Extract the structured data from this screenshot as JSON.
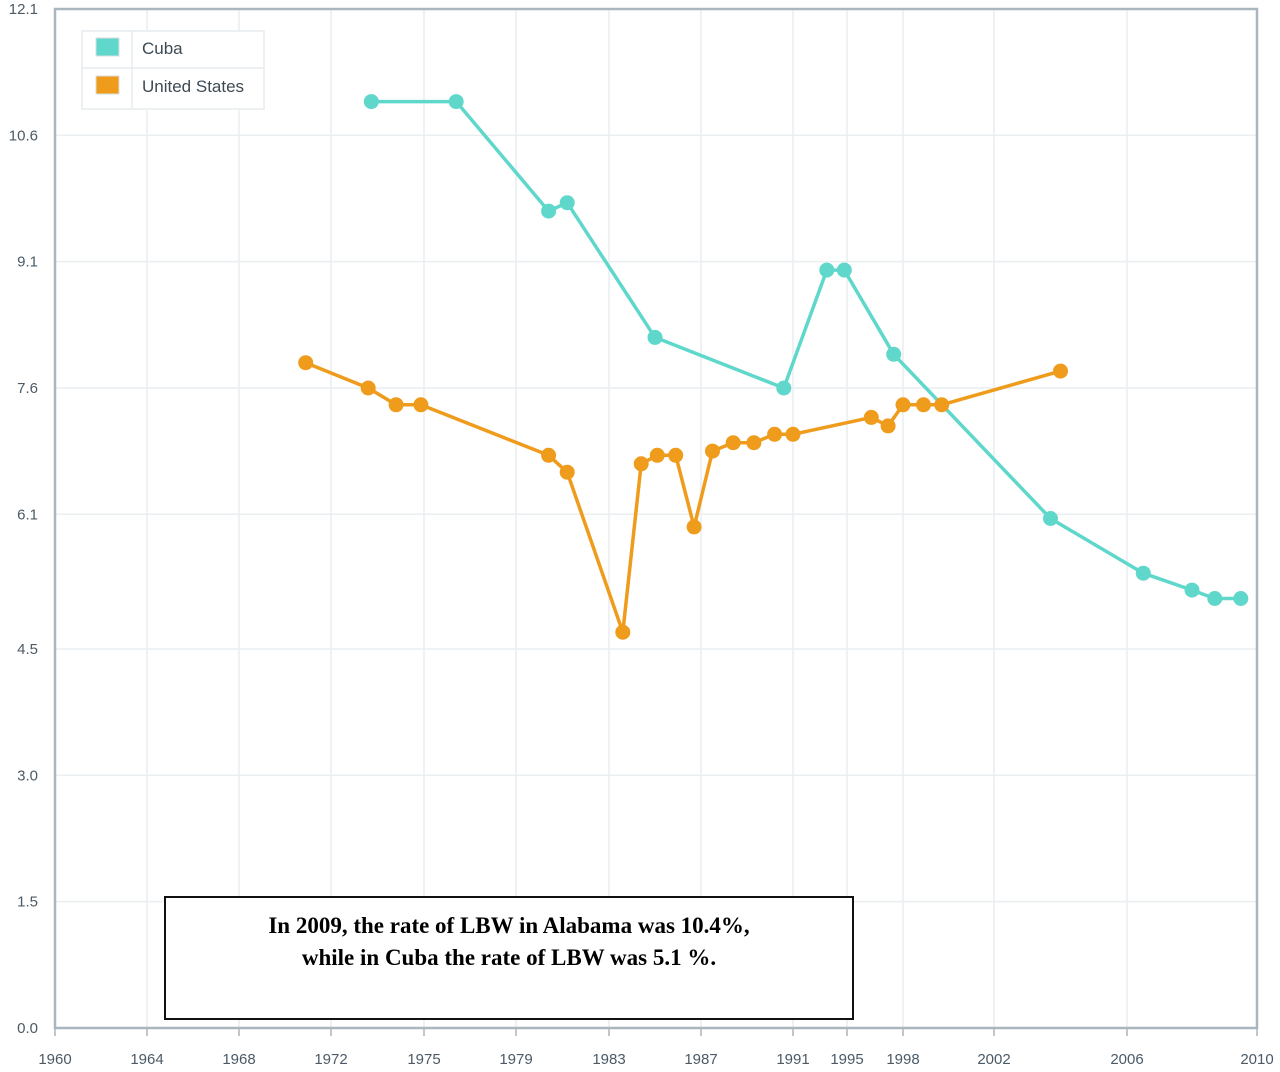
{
  "chart_data": {
    "type": "line",
    "title": "",
    "xlabel": "",
    "ylabel": "",
    "x_tick_labels": [
      "1960",
      "1964",
      "1968",
      "1972",
      "1975",
      "1979",
      "1983",
      "1987",
      "1991",
      "1995",
      "1998",
      "2002",
      "2006",
      "2010"
    ],
    "y_tick_labels": [
      "0.0",
      "1.5",
      "3.0",
      "4.5",
      "6.1",
      "7.6",
      "9.1",
      "10.6",
      "12.1"
    ],
    "ylim": [
      0,
      12.1
    ],
    "grid": true,
    "legend_position": "top-left",
    "series": [
      {
        "name": "Cuba",
        "color": "#5fd8cb",
        "points": [
          {
            "x": 1973.3,
            "y": 11.0
          },
          {
            "x": 1976.4,
            "y": 11.0
          },
          {
            "x": 1980.4,
            "y": 9.7
          },
          {
            "x": 1981.2,
            "y": 9.8
          },
          {
            "x": 1985.0,
            "y": 8.2
          },
          {
            "x": 1990.6,
            "y": 7.6
          },
          {
            "x": 1993.5,
            "y": 9.0
          },
          {
            "x": 1994.8,
            "y": 9.0
          },
          {
            "x": 1997.5,
            "y": 8.0
          },
          {
            "x": 2003.7,
            "y": 6.05
          },
          {
            "x": 2006.5,
            "y": 5.4
          },
          {
            "x": 2008.0,
            "y": 5.2
          },
          {
            "x": 2008.7,
            "y": 5.1
          },
          {
            "x": 2009.5,
            "y": 5.1
          }
        ]
      },
      {
        "name": "United States",
        "color": "#ef9b1c",
        "points": [
          {
            "x": 1970.9,
            "y": 7.9
          },
          {
            "x": 1973.2,
            "y": 7.6
          },
          {
            "x": 1974.1,
            "y": 7.4
          },
          {
            "x": 1974.9,
            "y": 7.4
          },
          {
            "x": 1980.4,
            "y": 6.8
          },
          {
            "x": 1981.2,
            "y": 6.6
          },
          {
            "x": 1983.6,
            "y": 4.7
          },
          {
            "x": 1984.4,
            "y": 6.7
          },
          {
            "x": 1985.1,
            "y": 6.8
          },
          {
            "x": 1985.9,
            "y": 6.8
          },
          {
            "x": 1986.7,
            "y": 5.95
          },
          {
            "x": 1987.5,
            "y": 6.85
          },
          {
            "x": 1988.4,
            "y": 6.95
          },
          {
            "x": 1989.3,
            "y": 6.95
          },
          {
            "x": 1990.2,
            "y": 7.05
          },
          {
            "x": 1991.0,
            "y": 7.05
          },
          {
            "x": 1996.3,
            "y": 7.25
          },
          {
            "x": 1997.2,
            "y": 7.15
          },
          {
            "x": 1998.0,
            "y": 7.4
          },
          {
            "x": 1998.9,
            "y": 7.4
          },
          {
            "x": 1999.7,
            "y": 7.4
          },
          {
            "x": 2004.0,
            "y": 7.8
          }
        ]
      }
    ]
  },
  "note": {
    "line1": "In 2009, the rate of LBW in Alabama was 10.4%,",
    "line2": "while in Cuba the rate of LBW was 5.1 %."
  }
}
